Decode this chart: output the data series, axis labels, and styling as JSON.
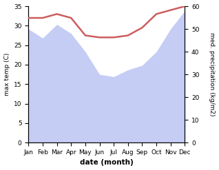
{
  "months": [
    "Jan",
    "Feb",
    "Mar",
    "Apr",
    "May",
    "Jun",
    "Jul",
    "Aug",
    "Sep",
    "Oct",
    "Nov",
    "Dec"
  ],
  "temperature": [
    32,
    32,
    33,
    32,
    27.5,
    27,
    27,
    27.5,
    29.5,
    33,
    34,
    35
  ],
  "precipitation": [
    50,
    46,
    52,
    48,
    40,
    30,
    29,
    32,
    34,
    40,
    50,
    58
  ],
  "temp_color": "#cd5c5c",
  "precip_color": "#c5cdf5",
  "temp_ylim": [
    0,
    35
  ],
  "precip_ylim": [
    0,
    60
  ],
  "temp_yticks": [
    0,
    5,
    10,
    15,
    20,
    25,
    30,
    35
  ],
  "precip_yticks": [
    0,
    10,
    20,
    30,
    40,
    50,
    60
  ],
  "xlabel": "date (month)",
  "ylabel_left": "max temp (C)",
  "ylabel_right": "med. precipitation (kg/m2)",
  "bg_color": "#ffffff",
  "line_width": 1.8,
  "figsize": [
    3.18,
    2.47
  ],
  "dpi": 100
}
